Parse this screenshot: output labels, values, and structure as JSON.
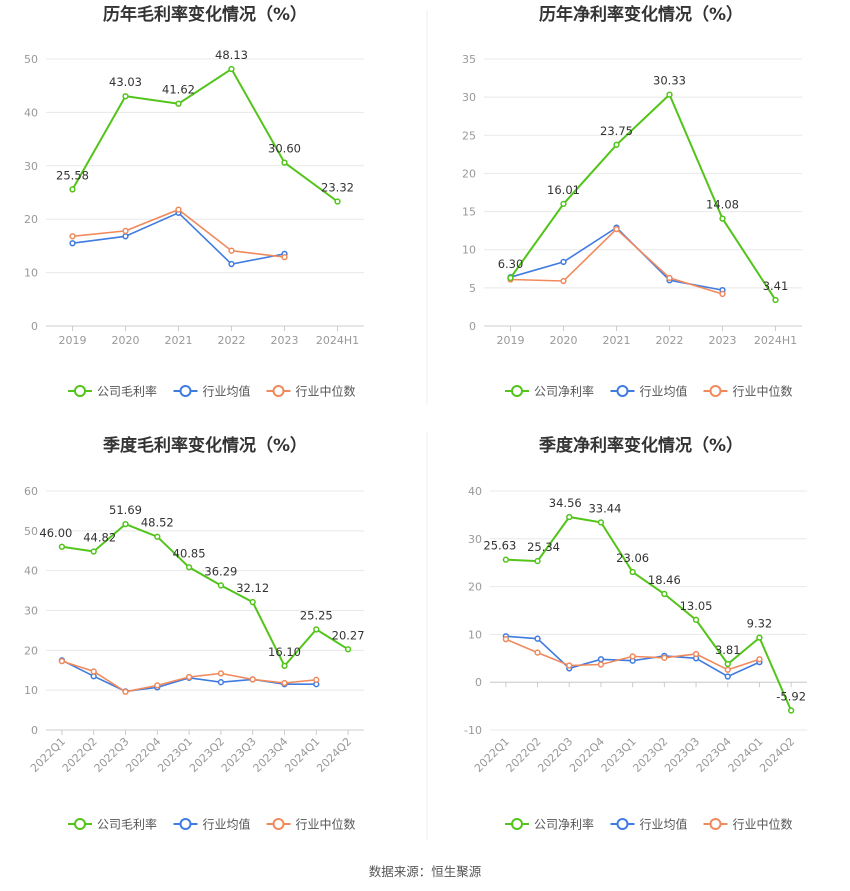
{
  "colors": {
    "company": "#52c41a",
    "industry_avg": "#3f7be0",
    "industry_median": "#f08a5d",
    "grid": "#e8e8e8",
    "axis": "#cccccc"
  },
  "source": "数据来源：恒生聚源",
  "chart_data": [
    {
      "type": "line",
      "title": "历年毛利率变化情况（%）",
      "categories": [
        "2019",
        "2020",
        "2021",
        "2022",
        "2023",
        "2024H1"
      ],
      "ylim": [
        0,
        50
      ],
      "yticks": [
        0,
        10,
        20,
        30,
        40,
        50
      ],
      "xlabel": "",
      "ylabel": "",
      "legend": [
        "公司毛利率",
        "行业均值",
        "行业中位数"
      ],
      "series": [
        {
          "name": "公司毛利率",
          "key": "company",
          "values": [
            25.58,
            43.03,
            41.62,
            48.13,
            30.6,
            23.32
          ],
          "labels": [
            "25.58",
            "43.03",
            "41.62",
            "48.13",
            "30.60",
            "23.32"
          ]
        },
        {
          "name": "行业均值",
          "key": "industry_avg",
          "values": [
            15.5,
            16.8,
            21.2,
            11.6,
            13.5,
            null
          ]
        },
        {
          "name": "行业中位数",
          "key": "industry_median",
          "values": [
            16.8,
            17.8,
            21.8,
            14.1,
            12.9,
            null
          ]
        }
      ]
    },
    {
      "type": "line",
      "title": "历年净利率变化情况（%）",
      "categories": [
        "2019",
        "2020",
        "2021",
        "2022",
        "2023",
        "2024H1"
      ],
      "ylim": [
        0,
        35
      ],
      "yticks": [
        0,
        5,
        10,
        15,
        20,
        25,
        30,
        35
      ],
      "xlabel": "",
      "ylabel": "",
      "legend": [
        "公司净利率",
        "行业均值",
        "行业中位数"
      ],
      "series": [
        {
          "name": "公司净利率",
          "key": "company",
          "values": [
            6.3,
            16.01,
            23.75,
            30.33,
            14.08,
            3.41
          ],
          "labels": [
            "6.30",
            "16.01",
            "23.75",
            "30.33",
            "14.08",
            "3.41"
          ]
        },
        {
          "name": "行业均值",
          "key": "industry_avg",
          "values": [
            6.4,
            8.4,
            12.9,
            6.0,
            4.7,
            null
          ]
        },
        {
          "name": "行业中位数",
          "key": "industry_median",
          "values": [
            6.1,
            5.9,
            12.7,
            6.3,
            4.2,
            null
          ]
        }
      ]
    },
    {
      "type": "line",
      "title": "季度毛利率变化情况（%）",
      "categories": [
        "2022Q1",
        "2022Q2",
        "2022Q3",
        "2022Q4",
        "2023Q1",
        "2023Q2",
        "2023Q3",
        "2023Q4",
        "2024Q1",
        "2024Q2"
      ],
      "ylim": [
        0,
        60
      ],
      "yticks": [
        0,
        10,
        20,
        30,
        40,
        50,
        60
      ],
      "xlabel": "",
      "ylabel": "",
      "legend": [
        "公司毛利率",
        "行业均值",
        "行业中位数"
      ],
      "series": [
        {
          "name": "公司毛利率",
          "key": "company",
          "values": [
            46.0,
            44.82,
            51.69,
            48.52,
            40.85,
            36.29,
            32.12,
            16.1,
            25.25,
            20.27
          ],
          "labels": [
            "46.00",
            "44.82",
            "51.69",
            "48.52",
            "40.85",
            "36.29",
            "32.12",
            "16.10",
            "25.25",
            "20.27"
          ]
        },
        {
          "name": "行业均值",
          "key": "industry_avg",
          "values": [
            17.5,
            13.5,
            9.7,
            10.7,
            13.1,
            12.0,
            12.7,
            11.5,
            11.5,
            null
          ]
        },
        {
          "name": "行业中位数",
          "key": "industry_median",
          "values": [
            17.3,
            14.7,
            9.6,
            11.2,
            13.3,
            14.2,
            12.7,
            11.8,
            12.6,
            null
          ]
        }
      ]
    },
    {
      "type": "line",
      "title": "季度净利率变化情况（%）",
      "categories": [
        "2022Q1",
        "2022Q2",
        "2022Q3",
        "2022Q4",
        "2023Q1",
        "2023Q2",
        "2023Q3",
        "2023Q4",
        "2024Q1",
        "2024Q2"
      ],
      "ylim": [
        -10,
        40
      ],
      "yticks": [
        -10,
        0,
        10,
        20,
        30,
        40
      ],
      "xlabel": "",
      "ylabel": "",
      "legend": [
        "公司净利率",
        "行业均值",
        "行业中位数"
      ],
      "series": [
        {
          "name": "公司净利率",
          "key": "company",
          "values": [
            25.63,
            25.34,
            34.56,
            33.44,
            23.06,
            18.46,
            13.05,
            3.81,
            9.32,
            -5.92
          ],
          "labels": [
            "25.63",
            "25.34",
            "34.56",
            "33.44",
            "23.06",
            "18.46",
            "13.05",
            "3.81",
            "9.32",
            "-5.92"
          ]
        },
        {
          "name": "行业均值",
          "key": "industry_avg",
          "values": [
            9.6,
            9.1,
            2.9,
            4.8,
            4.5,
            5.5,
            5.0,
            1.2,
            4.2,
            null
          ]
        },
        {
          "name": "行业中位数",
          "key": "industry_median",
          "values": [
            9.0,
            6.2,
            3.5,
            3.7,
            5.4,
            5.1,
            5.9,
            2.6,
            4.8,
            null
          ]
        }
      ]
    }
  ]
}
